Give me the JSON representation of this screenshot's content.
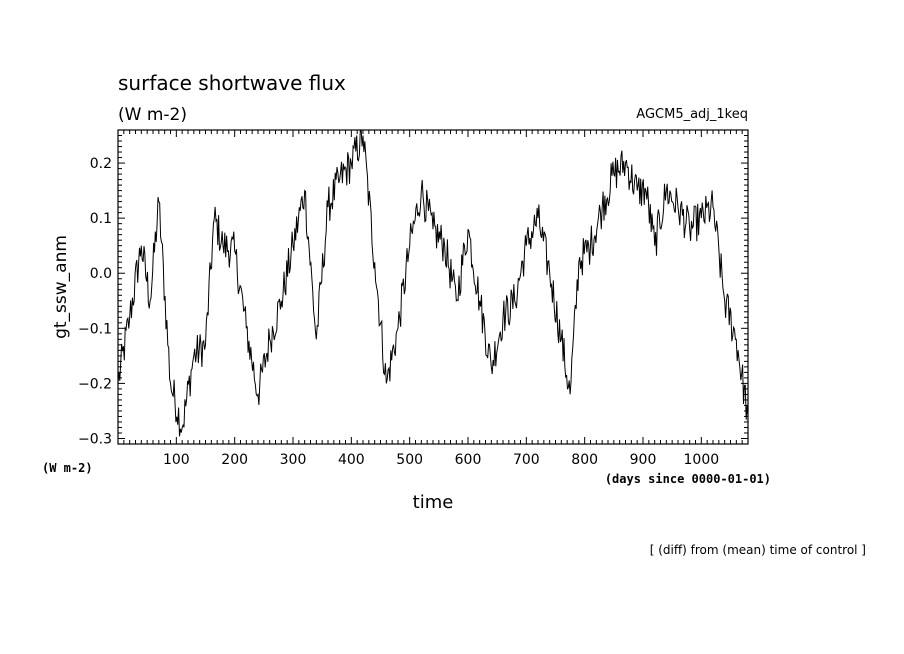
{
  "chart_data": {
    "type": "line",
    "title": "surface shortwave flux",
    "units": "(W m-2)",
    "dataset": "AGCM5_adj_1keq",
    "ylabel": "gt_ssw_anm",
    "y_units": "(W m-2)",
    "xlabel": "time",
    "x_units": "(days since 0000-01-01)",
    "note": "[ (diff) from (mean) time of control ]",
    "xlim": [
      0,
      1080
    ],
    "ylim": [
      -0.31,
      0.26
    ],
    "xticks": [
      100,
      200,
      300,
      400,
      500,
      600,
      700,
      800,
      900,
      1000
    ],
    "xtick_labels": [
      "100",
      "200",
      "300",
      "400",
      "500",
      "600",
      "700",
      "800",
      "900",
      "1000"
    ],
    "yticks": [
      -0.3,
      -0.2,
      -0.1,
      0.0,
      0.1,
      0.2
    ],
    "ytick_labels": [
      "−0.3",
      "−0.2",
      "−0.1",
      "0.0",
      "0.1",
      "0.2"
    ],
    "grid": false,
    "series": [
      {
        "x": [
          0,
          20,
          40,
          55,
          70,
          90,
          110,
          130,
          150,
          165,
          180,
          200,
          220,
          240,
          260,
          280,
          300,
          320,
          340,
          360,
          380,
          400,
          420,
          440,
          460,
          480,
          500,
          520,
          540,
          560,
          580,
          600,
          620,
          640,
          660,
          680,
          700,
          720,
          740,
          760,
          775,
          790,
          810,
          830,
          850,
          870,
          890,
          905,
          920,
          940,
          960,
          980,
          1000,
          1020,
          1040,
          1060,
          1080
        ],
        "values": [
          -0.2,
          -0.08,
          0.05,
          -0.05,
          0.13,
          -0.2,
          -0.28,
          -0.15,
          -0.13,
          0.1,
          0.05,
          0.04,
          -0.1,
          -0.22,
          -0.12,
          -0.05,
          0.05,
          0.15,
          -0.12,
          0.12,
          0.17,
          0.2,
          0.25,
          0.02,
          -0.2,
          -0.1,
          0.05,
          0.15,
          0.08,
          0.05,
          -0.05,
          0.08,
          -0.05,
          -0.17,
          -0.08,
          -0.05,
          0.05,
          0.1,
          0.0,
          -0.12,
          -0.22,
          0.02,
          0.05,
          0.12,
          0.18,
          0.2,
          0.15,
          0.15,
          0.05,
          0.15,
          0.12,
          0.08,
          0.1,
          0.12,
          -0.05,
          -0.12,
          -0.26
        ]
      }
    ]
  }
}
